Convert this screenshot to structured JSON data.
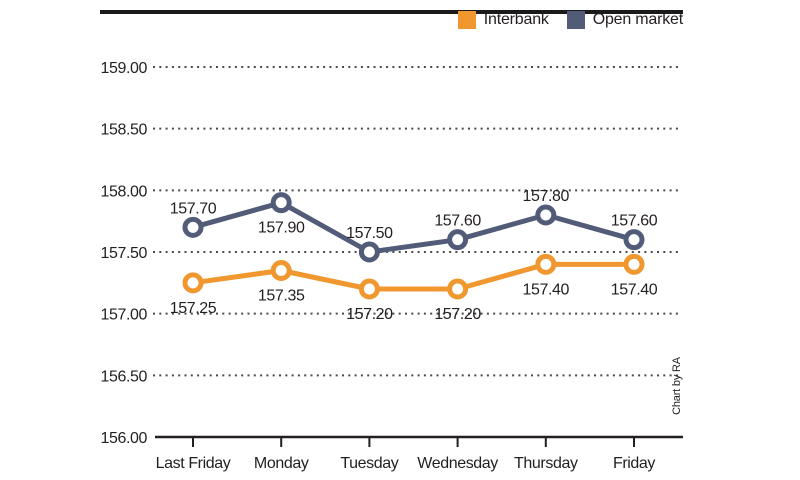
{
  "credit": "Chart by RA",
  "legend": {
    "items": [
      {
        "label": "Interbank",
        "color": "#F0982F"
      },
      {
        "label": "Open market",
        "color": "#525C78"
      }
    ]
  },
  "colors": {
    "interbank": "#F0982F",
    "open_market": "#525C78",
    "axis": "#231F20",
    "grid_dots": "#4a4a4a",
    "top_rule": "#1A1A1A",
    "text": "#231F20"
  },
  "chart_data": {
    "type": "line",
    "title": "",
    "xlabel": "",
    "ylabel": "",
    "categories": [
      "Last Friday",
      "Monday",
      "Tuesday",
      "Wednesday",
      "Thursday",
      "Friday"
    ],
    "series": [
      {
        "name": "Interbank",
        "color": "#F0982F",
        "values": [
          157.25,
          157.35,
          157.2,
          157.2,
          157.4,
          157.4
        ],
        "label_positions": [
          "below",
          "below",
          "below",
          "below",
          "below",
          "below"
        ]
      },
      {
        "name": "Open market",
        "color": "#525C78",
        "values": [
          157.7,
          157.9,
          157.5,
          157.6,
          157.8,
          157.6
        ],
        "label_positions": [
          "above",
          "below",
          "above",
          "above",
          "above",
          "above"
        ]
      }
    ],
    "ylim": [
      156.0,
      159.0
    ],
    "ytick_step": 0.5,
    "yticks": [
      "159.00",
      "158.50",
      "158.00",
      "157.50",
      "157.00",
      "156.50",
      "156.00"
    ],
    "grid": "dotted horizontal gridlines, solid bottom axis with downward category ticks",
    "legend_position": "top-right",
    "value_label_format": "2 decimal places shown next to every marker",
    "marker": "white-filled circle with thick colored ring"
  }
}
